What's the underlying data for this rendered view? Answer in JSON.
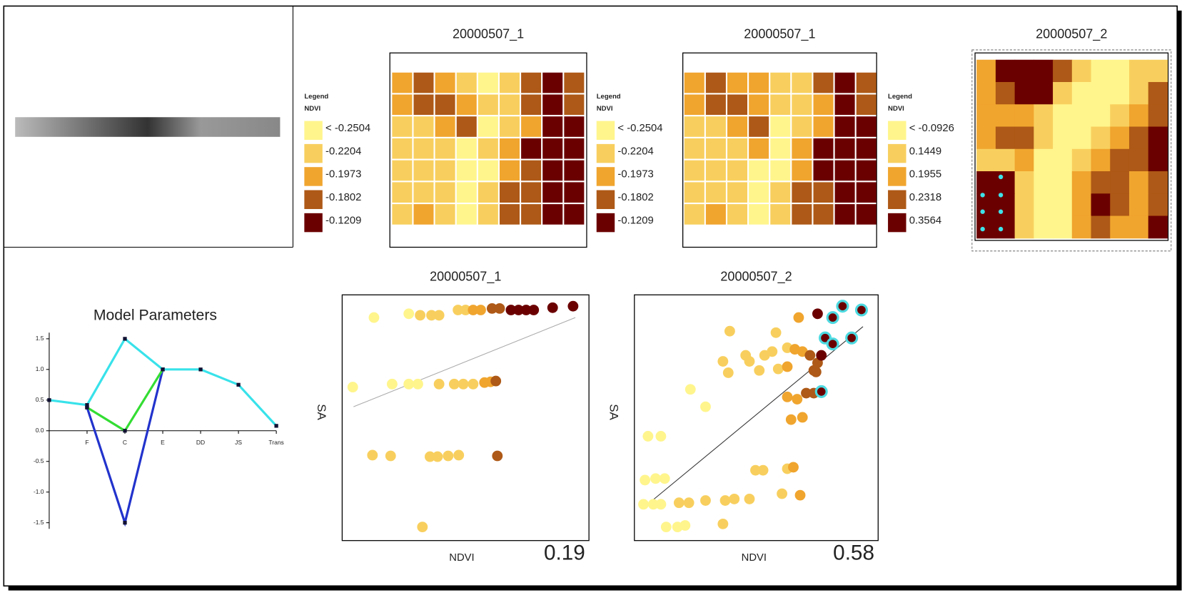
{
  "class_colors": [
    "#fff58c",
    "#f8cf5e",
    "#f0a52e",
    "#ae5917",
    "#6b0000"
  ],
  "maps": [
    {
      "title": "20000507_1",
      "legend_title": "Legend",
      "legend_field": "NDVI",
      "legend_labels": [
        "< -0.2504",
        "-0.2204",
        "-0.1973",
        "-0.1802",
        "-0.1209"
      ],
      "cells": [
        [
          2,
          3,
          2,
          1,
          0,
          1,
          3,
          4,
          3
        ],
        [
          2,
          3,
          3,
          2,
          1,
          1,
          3,
          4,
          3
        ],
        [
          1,
          1,
          2,
          3,
          0,
          1,
          2,
          4,
          4
        ],
        [
          1,
          1,
          1,
          0,
          1,
          2,
          4,
          4,
          4
        ],
        [
          1,
          1,
          1,
          0,
          0,
          2,
          3,
          4,
          4
        ],
        [
          1,
          1,
          1,
          0,
          1,
          3,
          3,
          4,
          4
        ],
        [
          1,
          2,
          1,
          0,
          1,
          3,
          3,
          4,
          4
        ]
      ]
    },
    {
      "title": "20000507_1",
      "legend_title": "Legend",
      "legend_field": "NDVI",
      "legend_labels": [
        "< -0.2504",
        "-0.2204",
        "-0.1973",
        "-0.1802",
        "-0.1209"
      ],
      "cells": [
        [
          2,
          3,
          2,
          2,
          1,
          1,
          3,
          4,
          3
        ],
        [
          2,
          3,
          3,
          2,
          1,
          1,
          2,
          4,
          3
        ],
        [
          1,
          1,
          2,
          3,
          0,
          1,
          2,
          4,
          4
        ],
        [
          1,
          1,
          1,
          2,
          0,
          2,
          4,
          4,
          4
        ],
        [
          1,
          1,
          1,
          0,
          0,
          2,
          4,
          4,
          4
        ],
        [
          1,
          1,
          1,
          0,
          1,
          3,
          3,
          4,
          4
        ],
        [
          1,
          2,
          1,
          0,
          1,
          3,
          3,
          4,
          4
        ]
      ]
    },
    {
      "title": "20000507_2",
      "legend_title": "Legend",
      "legend_field": "NDVI",
      "legend_labels": [
        "< -0.0926",
        "0.1449",
        "0.1955",
        "0.2318",
        "0.3564"
      ],
      "cells": [
        [
          2,
          4,
          4,
          4,
          3,
          1,
          0,
          0,
          1,
          1
        ],
        [
          2,
          3,
          4,
          4,
          1,
          0,
          0,
          0,
          1,
          3
        ],
        [
          2,
          2,
          2,
          1,
          0,
          0,
          0,
          1,
          2,
          3
        ],
        [
          2,
          3,
          3,
          1,
          0,
          0,
          1,
          2,
          3,
          4
        ],
        [
          1,
          1,
          2,
          0,
          0,
          1,
          2,
          3,
          3,
          4
        ],
        [
          4,
          4,
          1,
          0,
          0,
          2,
          3,
          3,
          2,
          3
        ],
        [
          4,
          4,
          1,
          0,
          0,
          2,
          4,
          3,
          2,
          3
        ],
        [
          4,
          4,
          1,
          0,
          0,
          2,
          3,
          2,
          2,
          4
        ]
      ]
    }
  ],
  "chart_data": [
    {
      "type": "line",
      "title": "Model Parameters",
      "categories": [
        null,
        "F",
        "C",
        "E",
        "DD",
        "JS",
        "Trans"
      ],
      "series": [
        {
          "color": "#2233cc",
          "values": [
            null,
            0.38,
            -1.5,
            1.0,
            null,
            null,
            null
          ]
        },
        {
          "color": "#33dd33",
          "values": [
            null,
            0.38,
            0.0,
            1.0,
            null,
            null,
            null
          ]
        },
        {
          "color": "#38e2ea",
          "values": [
            0.5,
            0.42,
            1.5,
            1.0,
            1.0,
            0.75,
            0.08
          ]
        }
      ],
      "ylim": [
        -1.6,
        1.6
      ],
      "yticks": [
        {
          "value": 1.5,
          "label": "1.5"
        },
        {
          "value": 1.0,
          "label": "1.0"
        },
        {
          "value": 0.5,
          "label": "0.5"
        },
        {
          "value": 0,
          "label": "0.0"
        },
        {
          "value": -0.5,
          "label": "-0.5"
        },
        {
          "value": -1.0,
          "label": "-1.0"
        },
        {
          "value": -1.5,
          "label": "-1.5"
        }
      ]
    },
    {
      "type": "scatter",
      "title": "20000507_1",
      "x_label": "NDVI",
      "y_label": "SA",
      "annotation": "0.19",
      "xlim": [
        0,
        326
      ],
      "ylim": [
        0,
        325
      ],
      "x": [
        42,
        88,
        103,
        118,
        128,
        153,
        163,
        173,
        183,
        198,
        208,
        223,
        233,
        243,
        253,
        278,
        305,
        14,
        66,
        88,
        100,
        128,
        148,
        160,
        173,
        188,
        196,
        203,
        40,
        64,
        116,
        126,
        140,
        154,
        205,
        106
      ],
      "y": [
        295,
        300,
        298,
        298,
        298,
        305,
        305,
        305,
        305,
        307,
        307,
        305,
        305,
        305,
        305,
        308,
        310,
        203,
        207,
        207,
        207,
        207,
        207,
        207,
        207,
        209,
        210,
        211,
        113,
        112,
        111,
        111,
        112,
        113,
        112,
        18
      ],
      "classes": [
        0,
        0,
        1,
        1,
        1,
        1,
        1,
        2,
        2,
        3,
        3,
        4,
        4,
        4,
        4,
        4,
        4,
        0,
        0,
        0,
        0,
        1,
        1,
        1,
        1,
        2,
        2,
        3,
        1,
        1,
        1,
        1,
        1,
        1,
        3,
        1
      ],
      "trend_x": [
        15,
        308
      ],
      "trend_y": [
        177,
        295
      ],
      "outlined_color": "#4dd9e0",
      "outlined": []
    },
    {
      "type": "scatter",
      "title": "20000507_2",
      "x_label": "NDVI",
      "y_label": "SA",
      "annotation": "0.58",
      "xlim": [
        0,
        322
      ],
      "ylim": [
        0,
        325
      ],
      "x": [
        126,
        187,
        217,
        242,
        262,
        275,
        300,
        252,
        262,
        287,
        202,
        212,
        222,
        232,
        242,
        237,
        247,
        117,
        147,
        152,
        172,
        182,
        124,
        165,
        190,
        202,
        240,
        227,
        237,
        247,
        202,
        215,
        74,
        94,
        207,
        222,
        18,
        35,
        14,
        28,
        40,
        160,
        170,
        202,
        210,
        12,
        25,
        35,
        59,
        72,
        94,
        120,
        132,
        152,
        195,
        219,
        42,
        57,
        67,
        117
      ],
      "y": [
        277,
        275,
        295,
        300,
        295,
        310,
        305,
        268,
        260,
        268,
        255,
        253,
        250,
        245,
        235,
        225,
        245,
        237,
        245,
        237,
        245,
        250,
        222,
        225,
        227,
        230,
        223,
        195,
        195,
        197,
        190,
        187,
        200,
        177,
        160,
        163,
        138,
        138,
        80,
        82,
        82,
        93,
        93,
        95,
        97,
        48,
        48,
        48,
        50,
        50,
        53,
        53,
        55,
        55,
        62,
        60,
        18,
        18,
        20,
        22
      ],
      "classes": [
        1,
        1,
        2,
        4,
        4,
        4,
        4,
        4,
        4,
        4,
        1,
        2,
        2,
        3,
        3,
        3,
        4,
        1,
        1,
        1,
        1,
        1,
        1,
        1,
        1,
        2,
        3,
        3,
        3,
        4,
        2,
        2,
        0,
        0,
        2,
        2,
        0,
        0,
        0,
        0,
        0,
        1,
        1,
        1,
        2,
        0,
        0,
        0,
        1,
        1,
        1,
        1,
        1,
        1,
        1,
        2,
        0,
        0,
        0,
        1
      ],
      "trend_x": [
        14,
        302
      ],
      "trend_y": [
        45,
        283
      ],
      "outlined_color": "#4dd9e0",
      "outlined": [
        4,
        5,
        6,
        7,
        8,
        9,
        29
      ]
    }
  ]
}
